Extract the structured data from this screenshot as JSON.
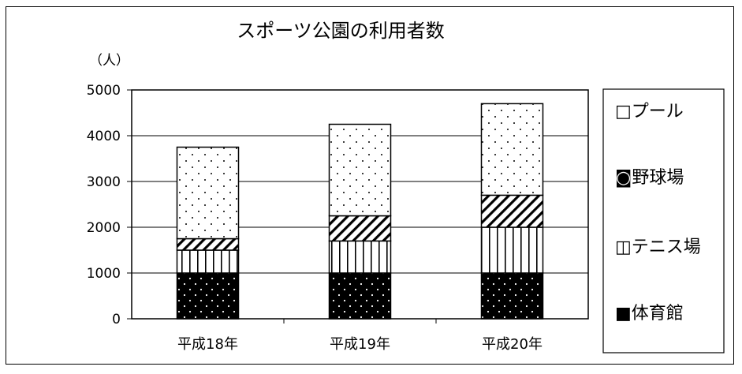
{
  "chart_data": {
    "type": "bar",
    "stacked": true,
    "title": "スポーツ公園の利用者数",
    "unit_label": "（人）",
    "categories": [
      "平成18年",
      "平成19年",
      "平成20年"
    ],
    "series": [
      {
        "name": "体育館",
        "values": [
          1000,
          1000,
          1000
        ],
        "pattern": "dark-dots"
      },
      {
        "name": "テニス場",
        "values": [
          500,
          700,
          1000
        ],
        "pattern": "vertical-lines"
      },
      {
        "name": "野球場",
        "values": [
          250,
          550,
          700
        ],
        "pattern": "diagonal-hatch"
      },
      {
        "name": "プール",
        "values": [
          2000,
          2000,
          2000
        ],
        "pattern": "light-dots"
      }
    ],
    "ylim": [
      0,
      5000
    ],
    "yticks": [
      "0",
      "1000",
      "2000",
      "3000",
      "4000",
      "5000"
    ],
    "grid": true,
    "legend_position": "right",
    "legend_order": [
      "プール",
      "野球場",
      "テニス場",
      "体育館"
    ],
    "legend_labels": [
      "□プール",
      "◙野球場",
      "◫テニス場",
      "■体育館"
    ]
  }
}
